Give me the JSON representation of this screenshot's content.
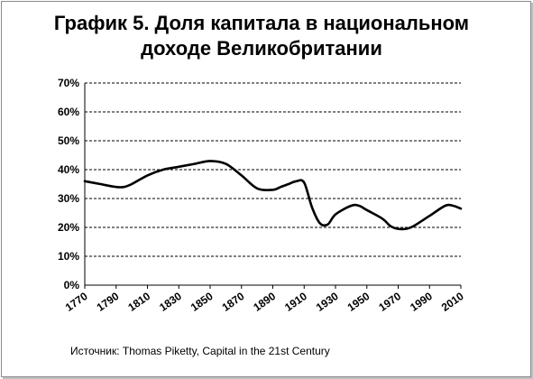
{
  "title_line1": "График 5. Доля капитала в национальном",
  "title_line2": "доходе Великобритании",
  "source": "Источник: Thomas Piketty, Capital in the 21st Century",
  "chart_data": {
    "type": "line",
    "title": "График 5. Доля капитала в национальном доходе Великобритании",
    "xlabel": "",
    "ylabel": "",
    "xlim": [
      1770,
      2010
    ],
    "ylim": [
      0,
      70
    ],
    "grid": true,
    "legend": "none",
    "line_color": "#000000",
    "x_ticks": [
      1770,
      1790,
      1810,
      1830,
      1850,
      1870,
      1890,
      1910,
      1930,
      1950,
      1970,
      1990,
      2010
    ],
    "y_ticks": [
      0,
      10,
      20,
      30,
      40,
      50,
      60,
      70
    ],
    "y_tick_labels": [
      "0%",
      "10%",
      "20%",
      "30%",
      "40%",
      "50%",
      "60%",
      "70%"
    ],
    "series": [
      {
        "x": [
          1770,
          1780,
          1790,
          1795,
          1800,
          1810,
          1820,
          1830,
          1840,
          1850,
          1860,
          1870,
          1880,
          1890,
          1895,
          1900,
          1905,
          1910,
          1915,
          1920,
          1925,
          1930,
          1940,
          1945,
          1950,
          1960,
          1965,
          1970,
          1975,
          1980,
          1990,
          2000,
          2005,
          2010
        ],
        "y": [
          36,
          35,
          34,
          34,
          35,
          38,
          40,
          41,
          42,
          43,
          42,
          38,
          33.5,
          33,
          34,
          35,
          36,
          35.5,
          27,
          21.5,
          21,
          24.5,
          27.5,
          27.5,
          26,
          23,
          20.5,
          19.5,
          19.5,
          20.5,
          24,
          27.5,
          27.5,
          26.5
        ]
      }
    ]
  }
}
